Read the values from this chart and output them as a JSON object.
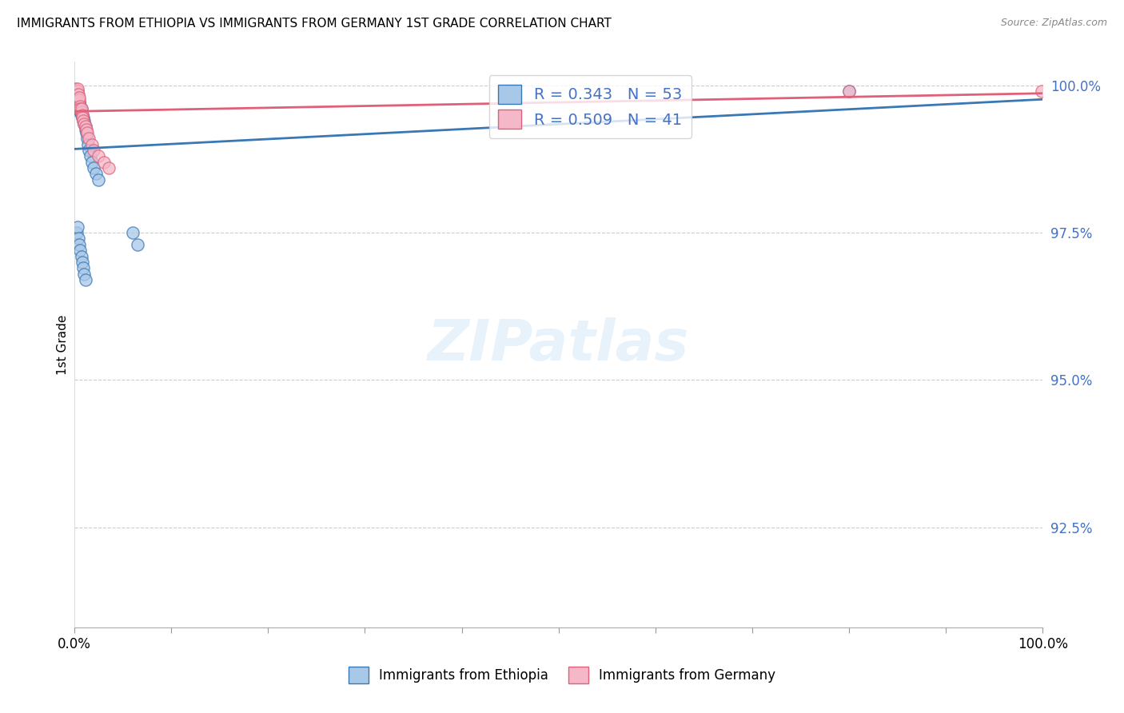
{
  "title": "IMMIGRANTS FROM ETHIOPIA VS IMMIGRANTS FROM GERMANY 1ST GRADE CORRELATION CHART",
  "source": "Source: ZipAtlas.com",
  "ylabel": "1st Grade",
  "legend_labels": [
    "Immigrants from Ethiopia",
    "Immigrants from Germany"
  ],
  "R_ethiopia": 0.343,
  "N_ethiopia": 53,
  "R_germany": 0.509,
  "N_germany": 41,
  "color_ethiopia": "#a8c8e8",
  "color_germany": "#f4b8c8",
  "line_color_ethiopia": "#3a78b5",
  "line_color_germany": "#e0607a",
  "xlim": [
    0.0,
    1.0
  ],
  "ylim": [
    0.908,
    1.004
  ],
  "yticks": [
    0.925,
    0.95,
    0.975,
    1.0
  ],
  "ytick_labels": [
    "92.5%",
    "95.0%",
    "97.5%",
    "100.0%"
  ],
  "watermark": "ZIPatlas",
  "background_color": "#ffffff",
  "grid_color": "#cccccc",
  "eth_x": [
    0.001,
    0.001,
    0.002,
    0.002,
    0.003,
    0.003,
    0.003,
    0.003,
    0.004,
    0.004,
    0.004,
    0.004,
    0.005,
    0.005,
    0.005,
    0.005,
    0.006,
    0.006,
    0.006,
    0.006,
    0.007,
    0.007,
    0.007,
    0.008,
    0.008,
    0.009,
    0.009,
    0.01,
    0.01,
    0.011,
    0.011,
    0.012,
    0.013,
    0.014,
    0.015,
    0.016,
    0.018,
    0.02,
    0.022,
    0.025,
    0.002,
    0.003,
    0.004,
    0.005,
    0.006,
    0.007,
    0.008,
    0.009,
    0.01,
    0.011,
    0.06,
    0.065,
    0.8
  ],
  "eth_y": [
    0.999,
    0.998,
    0.998,
    0.9985,
    0.998,
    0.9975,
    0.9985,
    0.999,
    0.9975,
    0.997,
    0.9975,
    0.998,
    0.997,
    0.9972,
    0.9968,
    0.9965,
    0.9965,
    0.996,
    0.9958,
    0.9955,
    0.996,
    0.9955,
    0.995,
    0.995,
    0.9945,
    0.9945,
    0.994,
    0.994,
    0.9935,
    0.993,
    0.9925,
    0.992,
    0.991,
    0.99,
    0.989,
    0.988,
    0.987,
    0.986,
    0.985,
    0.984,
    0.975,
    0.976,
    0.974,
    0.973,
    0.972,
    0.971,
    0.97,
    0.969,
    0.968,
    0.967,
    0.975,
    0.973,
    0.999
  ],
  "ger_x": [
    0.001,
    0.001,
    0.001,
    0.002,
    0.002,
    0.002,
    0.002,
    0.002,
    0.003,
    0.003,
    0.003,
    0.003,
    0.003,
    0.004,
    0.004,
    0.004,
    0.004,
    0.005,
    0.005,
    0.005,
    0.005,
    0.006,
    0.006,
    0.006,
    0.007,
    0.007,
    0.008,
    0.008,
    0.009,
    0.01,
    0.011,
    0.012,
    0.013,
    0.015,
    0.018,
    0.02,
    0.025,
    0.03,
    0.035,
    0.8,
    0.999
  ],
  "ger_y": [
    0.9995,
    0.999,
    0.9985,
    0.999,
    0.9985,
    0.998,
    0.9985,
    0.999,
    0.998,
    0.9975,
    0.9985,
    0.999,
    0.9995,
    0.998,
    0.9985,
    0.997,
    0.9975,
    0.997,
    0.9965,
    0.9975,
    0.998,
    0.996,
    0.9965,
    0.996,
    0.9955,
    0.996,
    0.995,
    0.9945,
    0.994,
    0.9935,
    0.993,
    0.9925,
    0.992,
    0.991,
    0.99,
    0.989,
    0.988,
    0.987,
    0.986,
    0.999,
    0.999
  ]
}
